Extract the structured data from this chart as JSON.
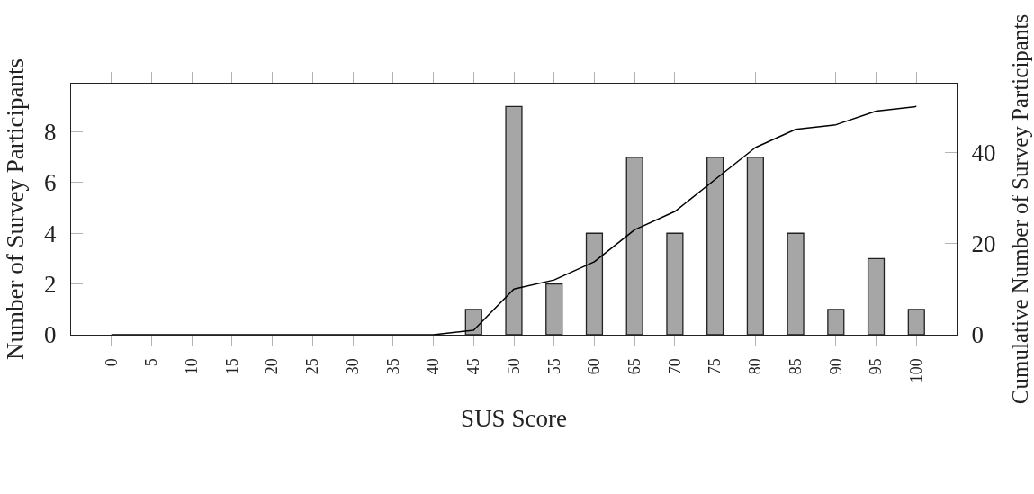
{
  "chart_data": {
    "type": "bar",
    "xlabel": "SUS Score",
    "ylabel": "Number of Survey Participants",
    "y2label": "Cumulative Number of Survey Participants",
    "x": [
      0,
      5,
      10,
      15,
      20,
      25,
      30,
      35,
      40,
      45,
      50,
      55,
      60,
      65,
      70,
      75,
      80,
      85,
      90,
      95,
      100
    ],
    "series": [
      {
        "color": "#a6a6a6",
        "values": [
          0,
          0,
          0,
          0,
          0,
          0,
          0,
          0,
          0,
          1,
          9,
          2,
          4,
          7,
          4,
          7,
          7,
          4,
          1,
          3,
          1
        ]
      },
      {
        "type": "line",
        "axis": "y2",
        "color": "#000000",
        "values": [
          0,
          0,
          0,
          0,
          0,
          0,
          0,
          0,
          0,
          1,
          10,
          12,
          16,
          23,
          27,
          34,
          41,
          45,
          46,
          49,
          50
        ]
      }
    ],
    "xlim": [
      -5,
      105
    ],
    "xticks": [
      0,
      5,
      10,
      15,
      20,
      25,
      30,
      35,
      40,
      45,
      50,
      55,
      60,
      65,
      70,
      75,
      80,
      85,
      90,
      95,
      100
    ],
    "ylim": [
      0,
      9.9
    ],
    "yticks": [
      0,
      2,
      4,
      6,
      8
    ],
    "y2lim": [
      0,
      55
    ],
    "y2ticks": [
      0,
      20,
      40
    ],
    "grid": false,
    "marker": "none",
    "line_style": "solid"
  }
}
